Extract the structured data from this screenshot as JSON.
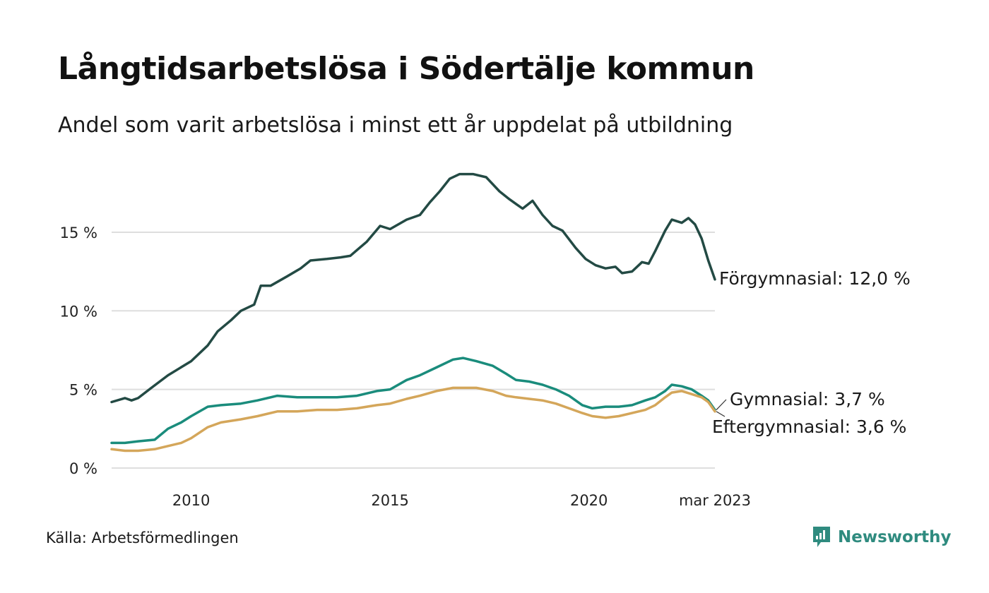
{
  "title": "Långtidsarbetslösa i Södertälje kommun",
  "subtitle": "Andel som varit arbetslösa i minst ett år uppdelat på utbildning",
  "source": "Källa: Arbetsförmedlingen",
  "brand": {
    "name": "Newsworthy",
    "icon": "newsworthy-logo-icon",
    "color": "#2f8b7f"
  },
  "chart_data": {
    "type": "line",
    "x_unit": "date (monthly)",
    "x_range": [
      "2008-01",
      "2023-03"
    ],
    "y_range": [
      0,
      19
    ],
    "grid": true,
    "x_tick_labels": [
      {
        "date": "2010-01",
        "label": "2010"
      },
      {
        "date": "2015-01",
        "label": "2015"
      },
      {
        "date": "2020-01",
        "label": "2020"
      },
      {
        "date": "2023-03",
        "label": "mar 2023"
      }
    ],
    "y_ticks": [
      {
        "value": 0,
        "label": "0 %"
      },
      {
        "value": 5,
        "label": "5 %"
      },
      {
        "value": 10,
        "label": "10 %"
      },
      {
        "value": 15,
        "label": "15 %"
      }
    ],
    "series": [
      {
        "name": "Förgymnasial",
        "end_label": "Förgymnasial: 12,0 %",
        "color": "#234a44",
        "points": [
          [
            "2008-01",
            4.2
          ],
          [
            "2008-05",
            4.45
          ],
          [
            "2008-07",
            4.3
          ],
          [
            "2008-09",
            4.45
          ],
          [
            "2009-01",
            5.1
          ],
          [
            "2009-06",
            5.9
          ],
          [
            "2010-01",
            6.8
          ],
          [
            "2010-06",
            7.8
          ],
          [
            "2010-09",
            8.7
          ],
          [
            "2011-01",
            9.4
          ],
          [
            "2011-04",
            10.0
          ],
          [
            "2011-08",
            10.4
          ],
          [
            "2011-10",
            11.6
          ],
          [
            "2012-01",
            11.6
          ],
          [
            "2012-06",
            12.2
          ],
          [
            "2012-10",
            12.7
          ],
          [
            "2013-01",
            13.2
          ],
          [
            "2013-06",
            13.3
          ],
          [
            "2013-10",
            13.4
          ],
          [
            "2014-01",
            13.5
          ],
          [
            "2014-06",
            14.4
          ],
          [
            "2014-10",
            15.4
          ],
          [
            "2015-01",
            15.2
          ],
          [
            "2015-06",
            15.8
          ],
          [
            "2015-10",
            16.1
          ],
          [
            "2016-01",
            16.9
          ],
          [
            "2016-04",
            17.6
          ],
          [
            "2016-07",
            18.4
          ],
          [
            "2016-10",
            18.7
          ],
          [
            "2017-02",
            18.7
          ],
          [
            "2017-06",
            18.5
          ],
          [
            "2017-10",
            17.6
          ],
          [
            "2018-01",
            17.1
          ],
          [
            "2018-03",
            16.8
          ],
          [
            "2018-05",
            16.5
          ],
          [
            "2018-08",
            17.0
          ],
          [
            "2018-11",
            16.1
          ],
          [
            "2019-02",
            15.4
          ],
          [
            "2019-05",
            15.1
          ],
          [
            "2019-09",
            14.0
          ],
          [
            "2019-12",
            13.3
          ],
          [
            "2020-03",
            12.9
          ],
          [
            "2020-06",
            12.7
          ],
          [
            "2020-09",
            12.8
          ],
          [
            "2020-11",
            12.4
          ],
          [
            "2021-02",
            12.5
          ],
          [
            "2021-05",
            13.1
          ],
          [
            "2021-07",
            13.0
          ],
          [
            "2021-09",
            13.8
          ],
          [
            "2021-12",
            15.1
          ],
          [
            "2022-02",
            15.8
          ],
          [
            "2022-05",
            15.6
          ],
          [
            "2022-07",
            15.9
          ],
          [
            "2022-09",
            15.5
          ],
          [
            "2022-11",
            14.6
          ],
          [
            "2023-01",
            13.2
          ],
          [
            "2023-03",
            12.0
          ]
        ]
      },
      {
        "name": "Gymnasial",
        "end_label": "Gymnasial:  3,7 %",
        "color": "#1a8c7c",
        "points": [
          [
            "2008-01",
            1.6
          ],
          [
            "2008-05",
            1.6
          ],
          [
            "2008-09",
            1.7
          ],
          [
            "2009-02",
            1.8
          ],
          [
            "2009-06",
            2.5
          ],
          [
            "2009-10",
            2.9
          ],
          [
            "2010-01",
            3.3
          ],
          [
            "2010-06",
            3.9
          ],
          [
            "2010-10",
            4.0
          ],
          [
            "2011-04",
            4.1
          ],
          [
            "2011-09",
            4.3
          ],
          [
            "2012-03",
            4.6
          ],
          [
            "2012-09",
            4.5
          ],
          [
            "2013-03",
            4.5
          ],
          [
            "2013-09",
            4.5
          ],
          [
            "2014-03",
            4.6
          ],
          [
            "2014-09",
            4.9
          ],
          [
            "2015-01",
            5.0
          ],
          [
            "2015-06",
            5.6
          ],
          [
            "2015-10",
            5.9
          ],
          [
            "2016-03",
            6.4
          ],
          [
            "2016-08",
            6.9
          ],
          [
            "2016-11",
            7.0
          ],
          [
            "2017-03",
            6.8
          ],
          [
            "2017-08",
            6.5
          ],
          [
            "2017-12",
            6.0
          ],
          [
            "2018-03",
            5.6
          ],
          [
            "2018-07",
            5.5
          ],
          [
            "2018-11",
            5.3
          ],
          [
            "2019-03",
            5.0
          ],
          [
            "2019-07",
            4.6
          ],
          [
            "2019-11",
            4.0
          ],
          [
            "2020-02",
            3.8
          ],
          [
            "2020-06",
            3.9
          ],
          [
            "2020-10",
            3.9
          ],
          [
            "2021-02",
            4.0
          ],
          [
            "2021-06",
            4.3
          ],
          [
            "2021-09",
            4.5
          ],
          [
            "2021-12",
            4.9
          ],
          [
            "2022-02",
            5.3
          ],
          [
            "2022-05",
            5.2
          ],
          [
            "2022-08",
            5.0
          ],
          [
            "2022-11",
            4.6
          ],
          [
            "2023-01",
            4.3
          ],
          [
            "2023-03",
            3.7
          ]
        ]
      },
      {
        "name": "Eftergymnasial",
        "end_label": "Eftergymnasial:  3,6 %",
        "color": "#d4a65a",
        "points": [
          [
            "2008-01",
            1.2
          ],
          [
            "2008-05",
            1.1
          ],
          [
            "2008-09",
            1.1
          ],
          [
            "2009-02",
            1.2
          ],
          [
            "2009-06",
            1.4
          ],
          [
            "2009-10",
            1.6
          ],
          [
            "2010-01",
            1.9
          ],
          [
            "2010-06",
            2.6
          ],
          [
            "2010-10",
            2.9
          ],
          [
            "2011-04",
            3.1
          ],
          [
            "2011-09",
            3.3
          ],
          [
            "2012-03",
            3.6
          ],
          [
            "2012-09",
            3.6
          ],
          [
            "2013-03",
            3.7
          ],
          [
            "2013-09",
            3.7
          ],
          [
            "2014-03",
            3.8
          ],
          [
            "2014-09",
            4.0
          ],
          [
            "2015-01",
            4.1
          ],
          [
            "2015-06",
            4.4
          ],
          [
            "2015-10",
            4.6
          ],
          [
            "2016-03",
            4.9
          ],
          [
            "2016-08",
            5.1
          ],
          [
            "2017-03",
            5.1
          ],
          [
            "2017-08",
            4.9
          ],
          [
            "2017-12",
            4.6
          ],
          [
            "2018-03",
            4.5
          ],
          [
            "2018-07",
            4.4
          ],
          [
            "2018-11",
            4.3
          ],
          [
            "2019-03",
            4.1
          ],
          [
            "2019-07",
            3.8
          ],
          [
            "2019-11",
            3.5
          ],
          [
            "2020-02",
            3.3
          ],
          [
            "2020-06",
            3.2
          ],
          [
            "2020-10",
            3.3
          ],
          [
            "2021-02",
            3.5
          ],
          [
            "2021-06",
            3.7
          ],
          [
            "2021-09",
            4.0
          ],
          [
            "2021-12",
            4.5
          ],
          [
            "2022-02",
            4.8
          ],
          [
            "2022-05",
            4.9
          ],
          [
            "2022-08",
            4.7
          ],
          [
            "2022-11",
            4.5
          ],
          [
            "2023-01",
            4.2
          ],
          [
            "2023-03",
            3.6
          ]
        ]
      }
    ]
  }
}
